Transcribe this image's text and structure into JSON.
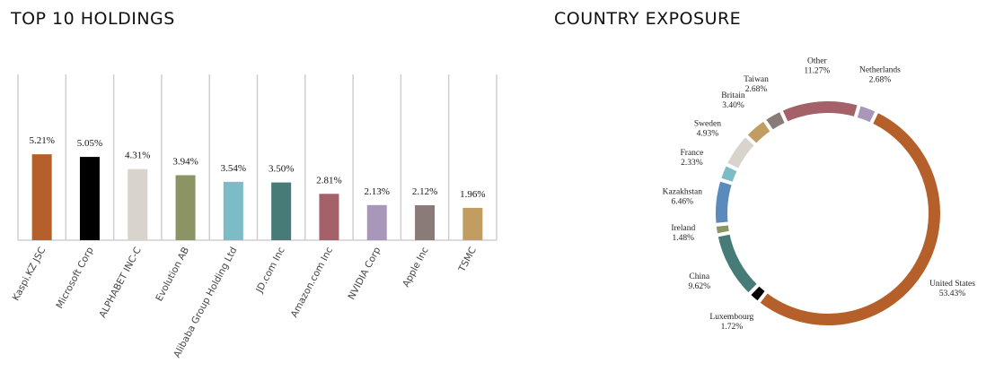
{
  "chart_data": [
    {
      "type": "bar",
      "title": "TOP 10 HOLDINGS",
      "categories": [
        "Kaspi.KZ JSC",
        "Microsoft Corp",
        "ALPHABET INC-C",
        "Evolution AB",
        "Alibaba Group Holding Ltd",
        "JD.com Inc",
        "Amazon.com Inc",
        "NVIDIA Corp",
        "Apple Inc",
        "TSMC"
      ],
      "values": [
        5.21,
        5.05,
        4.31,
        3.94,
        3.54,
        3.5,
        2.81,
        2.13,
        2.12,
        1.96
      ],
      "value_labels": [
        "5.21%",
        "5.05%",
        "4.31%",
        "3.94%",
        "3.54%",
        "3.50%",
        "2.81%",
        "2.13%",
        "2.12%",
        "1.96%"
      ],
      "colors": [
        "#b5602a",
        "#000000",
        "#d8d3cc",
        "#8a9464",
        "#7bbcc6",
        "#477b78",
        "#a4616a",
        "#a897b8",
        "#8b7b78",
        "#c19d62"
      ]
    },
    {
      "type": "donut",
      "title": "COUNTRY EXPOSURE",
      "categories": [
        "Netherlands",
        "United States",
        "Luxembourg",
        "China",
        "Ireland",
        "Kazakhstan",
        "France",
        "Sweden",
        "Britain",
        "Taiwan",
        "Other"
      ],
      "values": [
        2.68,
        53.43,
        1.72,
        9.62,
        1.48,
        6.46,
        2.33,
        4.93,
        3.4,
        2.68,
        11.27
      ],
      "value_labels": [
        "2.68%",
        "53.43%",
        "1.72%",
        "9.62%",
        "1.48%",
        "6.46%",
        "2.33%",
        "4.93%",
        "3.40%",
        "2.68%",
        "11.27%"
      ],
      "colors": [
        "#a897b8",
        "#b5602a",
        "#000000",
        "#477b78",
        "#8a9464",
        "#5b8bbd",
        "#7bbcc6",
        "#d8d3cc",
        "#c19d62",
        "#8b7b78",
        "#a4616a"
      ]
    }
  ]
}
